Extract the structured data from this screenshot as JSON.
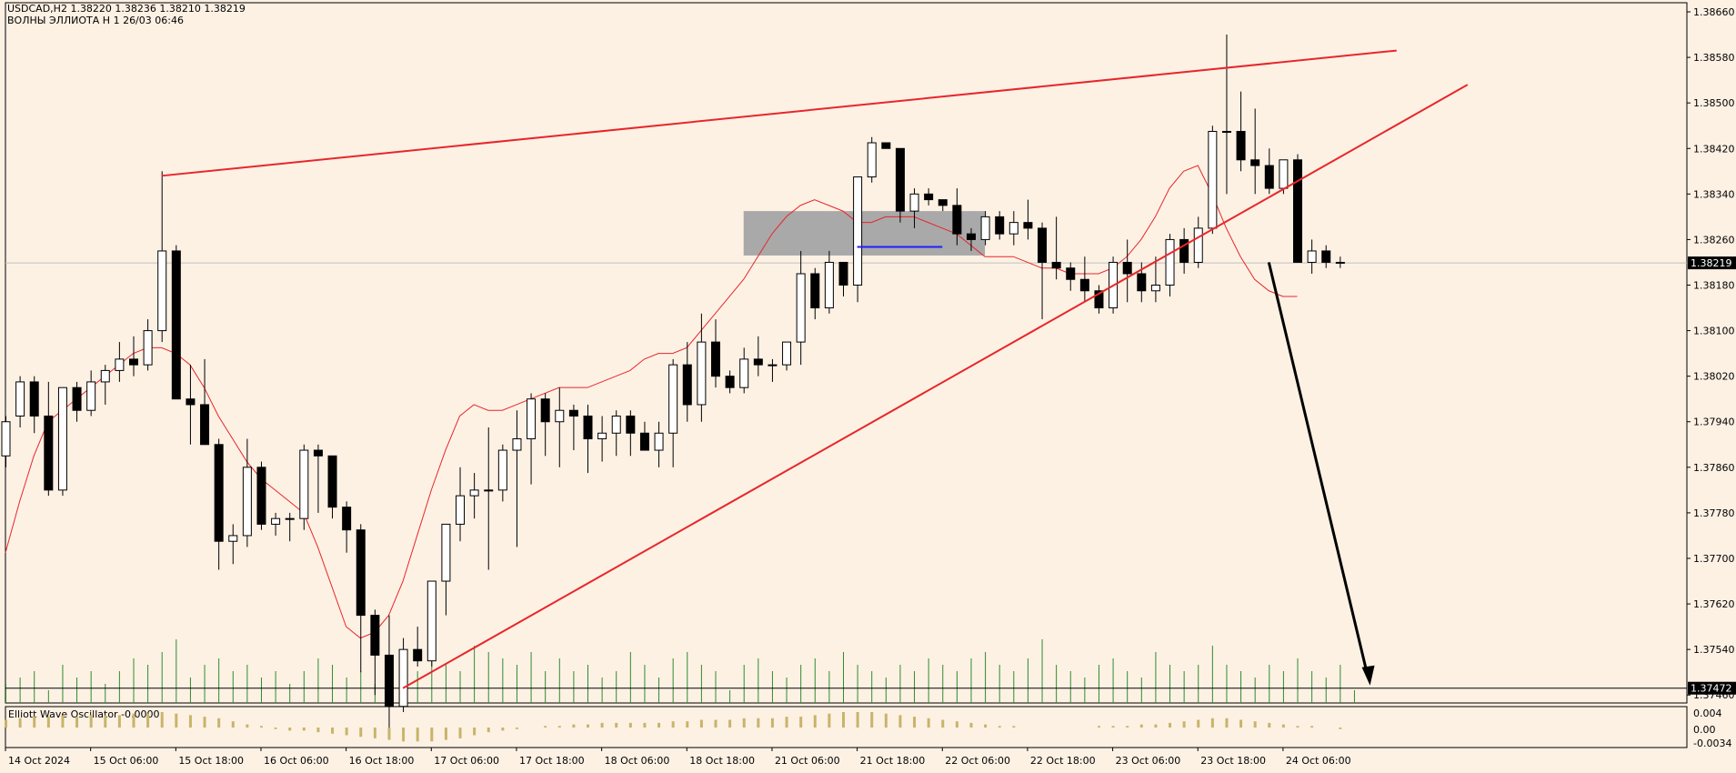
{
  "chart_data": {
    "type": "candlestick",
    "symbol_line": "USDCAD,H2  1.38220 1.38236 1.38210 1.38219",
    "subtitle": "ВОЛНЫ ЭЛЛИОТА Н 1 26/03 06:46",
    "current_price": "1.38219",
    "level_price": "1.37472",
    "oscillator_label": "Elliott Wave Oscillator -0.0000",
    "oscillator_ticks": [
      "0.004",
      "0.00",
      "-0.0034"
    ],
    "y_ticks": [
      "1.38660",
      "1.38580",
      "1.38500",
      "1.38420",
      "1.38340",
      "1.38260",
      "1.38180",
      "1.38100",
      "1.38020",
      "1.37940",
      "1.37860",
      "1.37780",
      "1.37700",
      "1.37620",
      "1.37540",
      "1.37460"
    ],
    "x_ticks": [
      "14 Oct 2024",
      "15 Oct 06:00",
      "15 Oct 18:00",
      "16 Oct 06:00",
      "16 Oct 18:00",
      "17 Oct 06:00",
      "17 Oct 18:00",
      "18 Oct 06:00",
      "18 Oct 18:00",
      "21 Oct 06:00",
      "21 Oct 18:00",
      "22 Oct 06:00",
      "22 Oct 18:00",
      "23 Oct 06:00",
      "23 Oct 18:00",
      "24 Oct 06:00"
    ],
    "candles": [
      [
        1.3788,
        1.3795,
        1.3786,
        1.3794
      ],
      [
        1.3795,
        1.3802,
        1.3793,
        1.3801
      ],
      [
        1.3801,
        1.3802,
        1.3792,
        1.3795
      ],
      [
        1.3795,
        1.3801,
        1.3781,
        1.3782
      ],
      [
        1.3782,
        1.38,
        1.3781,
        1.38
      ],
      [
        1.38,
        1.3801,
        1.3794,
        1.3796
      ],
      [
        1.3796,
        1.3803,
        1.3795,
        1.3801
      ],
      [
        1.3801,
        1.3804,
        1.3797,
        1.3803
      ],
      [
        1.3803,
        1.3808,
        1.3801,
        1.3805
      ],
      [
        1.3805,
        1.3809,
        1.3802,
        1.3804
      ],
      [
        1.3804,
        1.3812,
        1.3803,
        1.381
      ],
      [
        1.381,
        1.3838,
        1.3808,
        1.3824
      ],
      [
        1.3824,
        1.3825,
        1.3798,
        1.3798
      ],
      [
        1.3798,
        1.3804,
        1.379,
        1.3797
      ],
      [
        1.3797,
        1.3805,
        1.379,
        1.379
      ],
      [
        1.379,
        1.3791,
        1.3768,
        1.3773
      ],
      [
        1.3773,
        1.3776,
        1.3769,
        1.3774
      ],
      [
        1.3774,
        1.3791,
        1.3772,
        1.3786
      ],
      [
        1.3786,
        1.3787,
        1.3775,
        1.3776
      ],
      [
        1.3776,
        1.3778,
        1.3774,
        1.3777
      ],
      [
        1.3777,
        1.3778,
        1.3773,
        1.3777
      ],
      [
        1.3777,
        1.379,
        1.3775,
        1.3789
      ],
      [
        1.3789,
        1.379,
        1.3778,
        1.3788
      ],
      [
        1.3788,
        1.3788,
        1.3777,
        1.3779
      ],
      [
        1.3779,
        1.378,
        1.3771,
        1.3775
      ],
      [
        1.3775,
        1.3776,
        1.375,
        1.376
      ],
      [
        1.376,
        1.3761,
        1.3746,
        1.3753
      ],
      [
        1.3753,
        1.376,
        1.374,
        1.3744
      ],
      [
        1.3744,
        1.3756,
        1.3743,
        1.3754
      ],
      [
        1.3754,
        1.3758,
        1.3751,
        1.3752
      ],
      [
        1.3752,
        1.3766,
        1.3751,
        1.3766
      ],
      [
        1.3766,
        1.3776,
        1.376,
        1.3776
      ],
      [
        1.3776,
        1.3786,
        1.3773,
        1.3781
      ],
      [
        1.3781,
        1.3785,
        1.3777,
        1.3782
      ],
      [
        1.3782,
        1.3793,
        1.3768,
        1.3782
      ],
      [
        1.3782,
        1.379,
        1.378,
        1.3789
      ],
      [
        1.3789,
        1.3796,
        1.3772,
        1.3791
      ],
      [
        1.3791,
        1.3799,
        1.3783,
        1.3798
      ],
      [
        1.3798,
        1.3799,
        1.3788,
        1.3794
      ],
      [
        1.3794,
        1.38,
        1.3786,
        1.3796
      ],
      [
        1.3796,
        1.3797,
        1.3789,
        1.3795
      ],
      [
        1.3795,
        1.3797,
        1.3785,
        1.3791
      ],
      [
        1.3791,
        1.3795,
        1.3787,
        1.3792
      ],
      [
        1.3792,
        1.3796,
        1.3788,
        1.3795
      ],
      [
        1.3795,
        1.3796,
        1.3788,
        1.3792
      ],
      [
        1.3792,
        1.3794,
        1.3789,
        1.3789
      ],
      [
        1.3789,
        1.3794,
        1.3786,
        1.3792
      ],
      [
        1.3792,
        1.3805,
        1.3786,
        1.3804
      ],
      [
        1.3804,
        1.3808,
        1.3794,
        1.3797
      ],
      [
        1.3797,
        1.3813,
        1.3794,
        1.3808
      ],
      [
        1.3808,
        1.3812,
        1.38,
        1.3802
      ],
      [
        1.3802,
        1.3803,
        1.3799,
        1.38
      ],
      [
        1.38,
        1.3807,
        1.3799,
        1.3805
      ],
      [
        1.3805,
        1.3809,
        1.3802,
        1.3804
      ],
      [
        1.3804,
        1.3805,
        1.3801,
        1.3804
      ],
      [
        1.3804,
        1.3808,
        1.3803,
        1.3808
      ],
      [
        1.3808,
        1.3824,
        1.3804,
        1.382
      ],
      [
        1.382,
        1.3821,
        1.3812,
        1.3814
      ],
      [
        1.3814,
        1.3824,
        1.3813,
        1.3822
      ],
      [
        1.3822,
        1.3822,
        1.3816,
        1.3818
      ],
      [
        1.3818,
        1.3837,
        1.3815,
        1.3837
      ],
      [
        1.3837,
        1.3844,
        1.3836,
        1.3843
      ],
      [
        1.3843,
        1.3843,
        1.3842,
        1.3842
      ],
      [
        1.3842,
        1.3842,
        1.3829,
        1.3831
      ],
      [
        1.3831,
        1.3835,
        1.3828,
        1.3834
      ],
      [
        1.3834,
        1.3835,
        1.3832,
        1.3833
      ],
      [
        1.3833,
        1.3833,
        1.3831,
        1.3832
      ],
      [
        1.3832,
        1.3835,
        1.3825,
        1.3827
      ],
      [
        1.3827,
        1.3828,
        1.3824,
        1.3826
      ],
      [
        1.3826,
        1.3831,
        1.3825,
        1.383
      ],
      [
        1.383,
        1.3831,
        1.3826,
        1.3827
      ],
      [
        1.3827,
        1.3831,
        1.3825,
        1.3829
      ],
      [
        1.3829,
        1.3833,
        1.3826,
        1.3828
      ],
      [
        1.3828,
        1.3829,
        1.3812,
        1.3822
      ],
      [
        1.3822,
        1.383,
        1.3819,
        1.3821
      ],
      [
        1.3821,
        1.3822,
        1.3817,
        1.3819
      ],
      [
        1.3819,
        1.3823,
        1.3815,
        1.3817
      ],
      [
        1.3817,
        1.3818,
        1.3813,
        1.3814
      ],
      [
        1.3814,
        1.3823,
        1.3813,
        1.3822
      ],
      [
        1.3822,
        1.3826,
        1.3815,
        1.382
      ],
      [
        1.382,
        1.3822,
        1.3815,
        1.3817
      ],
      [
        1.3817,
        1.3823,
        1.3815,
        1.3818
      ],
      [
        1.3818,
        1.3827,
        1.3816,
        1.3826
      ],
      [
        1.3826,
        1.3828,
        1.382,
        1.3822
      ],
      [
        1.3822,
        1.383,
        1.3821,
        1.3828
      ],
      [
        1.3828,
        1.3846,
        1.3827,
        1.3845
      ],
      [
        1.3845,
        1.3862,
        1.3834,
        1.3845
      ],
      [
        1.3845,
        1.3852,
        1.3838,
        1.384
      ],
      [
        1.384,
        1.3849,
        1.3834,
        1.3839
      ],
      [
        1.3839,
        1.3842,
        1.3834,
        1.3835
      ],
      [
        1.3835,
        1.384,
        1.3834,
        1.384
      ],
      [
        1.384,
        1.3841,
        1.3822,
        1.3822
      ],
      [
        1.3822,
        1.3826,
        1.382,
        1.3824
      ],
      [
        1.3824,
        1.3825,
        1.3821,
        1.3822
      ],
      [
        1.3822,
        1.3823,
        1.3821,
        1.3822
      ]
    ],
    "ma": [
      1.3771,
      1.378,
      1.3788,
      1.3794,
      1.3796,
      1.3798,
      1.38,
      1.3802,
      1.3804,
      1.3806,
      1.3807,
      1.3807,
      1.3806,
      1.3804,
      1.38,
      1.3795,
      1.3791,
      1.3787,
      1.3784,
      1.3782,
      1.378,
      1.3778,
      1.3772,
      1.3765,
      1.3758,
      1.3756,
      1.3757,
      1.376,
      1.3766,
      1.3774,
      1.3782,
      1.3789,
      1.3795,
      1.3797,
      1.3796,
      1.3796,
      1.3797,
      1.3798,
      1.3799,
      1.38,
      1.38,
      1.38,
      1.3801,
      1.3802,
      1.3803,
      1.3805,
      1.3806,
      1.3806,
      1.3807,
      1.381,
      1.3813,
      1.3816,
      1.3819,
      1.3823,
      1.3827,
      1.383,
      1.3832,
      1.3833,
      1.3832,
      1.3831,
      1.3829,
      1.3829,
      1.383,
      1.383,
      1.383,
      1.3829,
      1.3828,
      1.3827,
      1.3825,
      1.3823,
      1.3823,
      1.3823,
      1.3822,
      1.3821,
      1.3821,
      1.382,
      1.382,
      1.382,
      1.3821,
      1.3823,
      1.3826,
      1.383,
      1.3835,
      1.3838,
      1.3839,
      1.3834,
      1.3828,
      1.3823,
      1.3819,
      1.3817,
      1.3816,
      1.3816
    ],
    "trendlines": [
      {
        "color": "#e8262b",
        "from": [
          11,
          1.38372
        ],
        "to": [
          98,
          1.38592
        ]
      },
      {
        "color": "#e8262b",
        "from": [
          28,
          1.37472
        ],
        "to": [
          103,
          1.38532
        ]
      }
    ],
    "zone": {
      "x_from": 52,
      "x_to": 69,
      "y_from": 1.38232,
      "y_to": 1.3831,
      "color": "#a9a9a9"
    },
    "blue_line": {
      "x_from": 60,
      "x_to": 66,
      "y": 1.38247,
      "color": "#1e1eff"
    },
    "arrow": {
      "from": [
        89,
        1.3822
      ],
      "to": [
        96,
        1.3748
      ],
      "color": "#000000"
    },
    "y_range": [
      1.37446,
      1.38676
    ],
    "volumes": [
      0.3,
      0.4,
      0.5,
      0.2,
      0.6,
      0.4,
      0.5,
      0.3,
      0.5,
      0.7,
      0.6,
      0.8,
      1.0,
      0.4,
      0.6,
      0.7,
      0.5,
      0.6,
      0.4,
      0.5,
      0.3,
      0.5,
      0.7,
      0.6,
      0.4,
      0.5,
      0.3,
      0.6,
      0.4,
      0.5,
      0.7,
      0.6,
      0.5,
      0.9,
      0.8,
      0.7,
      0.6,
      0.8,
      0.5,
      0.7,
      0.5,
      0.6,
      0.4,
      0.5,
      0.8,
      0.6,
      0.4,
      0.7,
      0.8,
      0.6,
      0.5,
      0.2,
      0.6,
      0.7,
      0.5,
      0.4,
      0.6,
      0.7,
      0.5,
      0.8,
      0.6,
      0.5,
      0.4,
      0.6,
      0.5,
      0.7,
      0.6,
      0.5,
      0.7,
      0.8,
      0.6,
      0.5,
      0.7,
      1.0,
      0.6,
      0.5,
      0.4,
      0.6,
      0.7,
      0.5,
      0.4,
      0.8,
      0.6,
      0.5,
      0.6,
      0.9,
      0.6,
      0.5,
      0.4,
      0.6,
      0.5,
      0.7,
      0.5,
      0.4,
      0.6,
      0.2
    ],
    "osc": [
      0.5,
      0.6,
      0.7,
      0.7,
      0.8,
      0.7,
      0.8,
      0.8,
      0.8,
      0.9,
      0.9,
      1.0,
      0.9,
      0.8,
      0.7,
      0.6,
      0.4,
      0.2,
      0.1,
      -0.1,
      -0.2,
      -0.2,
      -0.3,
      -0.4,
      -0.5,
      -0.6,
      -0.7,
      -0.8,
      -0.9,
      -0.9,
      -0.9,
      -0.8,
      -0.7,
      -0.5,
      -0.3,
      -0.2,
      -0.1,
      0.0,
      0.1,
      0.1,
      0.2,
      0.2,
      0.3,
      0.3,
      0.3,
      0.3,
      0.3,
      0.4,
      0.4,
      0.5,
      0.5,
      0.5,
      0.6,
      0.6,
      0.6,
      0.7,
      0.7,
      0.8,
      0.9,
      1.0,
      1.0,
      1.0,
      0.9,
      0.8,
      0.7,
      0.6,
      0.5,
      0.4,
      0.3,
      0.2,
      0.1,
      0.1,
      0.0,
      0.0,
      0.0,
      0.0,
      0.0,
      0.1,
      0.1,
      0.1,
      0.2,
      0.2,
      0.3,
      0.4,
      0.5,
      0.6,
      0.6,
      0.5,
      0.4,
      0.3,
      0.2,
      0.1,
      0.1,
      0.0,
      -0.1,
      0.0
    ]
  }
}
